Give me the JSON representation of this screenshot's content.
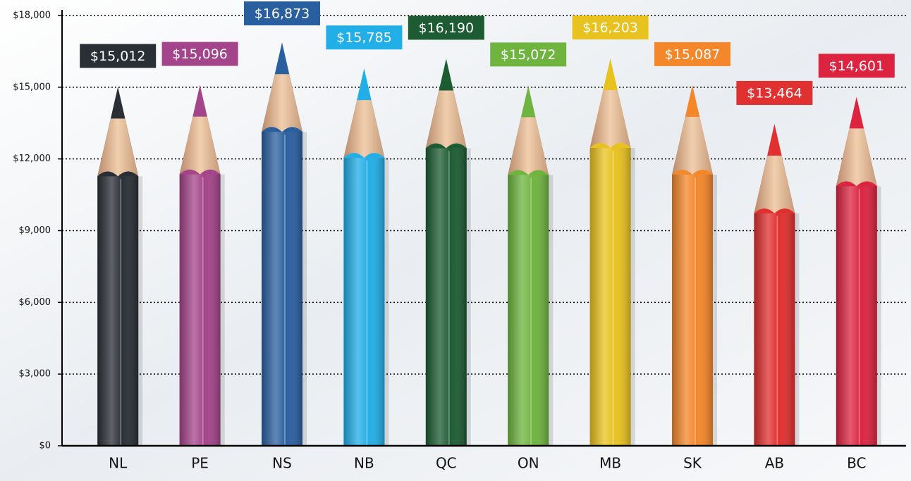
{
  "chart_data": {
    "type": "bar",
    "categories": [
      "NL",
      "PE",
      "NS",
      "NB",
      "QC",
      "ON",
      "MB",
      "SK",
      "AB",
      "BC"
    ],
    "values": [
      15012,
      15096,
      16873,
      15785,
      16190,
      15072,
      16203,
      15087,
      13464,
      14601
    ],
    "value_labels": [
      "$15,012",
      "$15,096",
      "$16,873",
      "$15,785",
      "$16,190",
      "$15,072",
      "$16,203",
      "$15,087",
      "$13,464",
      "$14,601"
    ],
    "colors": [
      "#2a2f36",
      "#a4448a",
      "#2a5f9f",
      "#22aee6",
      "#1d5c33",
      "#6fb43f",
      "#e8c21f",
      "#f3872a",
      "#e0302f",
      "#dc2440"
    ],
    "ylim": [
      0,
      18000
    ],
    "yticks": [
      {
        "value": 0,
        "label": "$0"
      },
      {
        "value": 3000,
        "label": "$3,000"
      },
      {
        "value": 6000,
        "label": "$6,000"
      },
      {
        "value": 9000,
        "label": "$9,000"
      },
      {
        "value": 12000,
        "label": "$12,000"
      },
      {
        "value": 15000,
        "label": "$15,000"
      },
      {
        "value": 18000,
        "label": "$18,000"
      }
    ],
    "grid": true
  }
}
